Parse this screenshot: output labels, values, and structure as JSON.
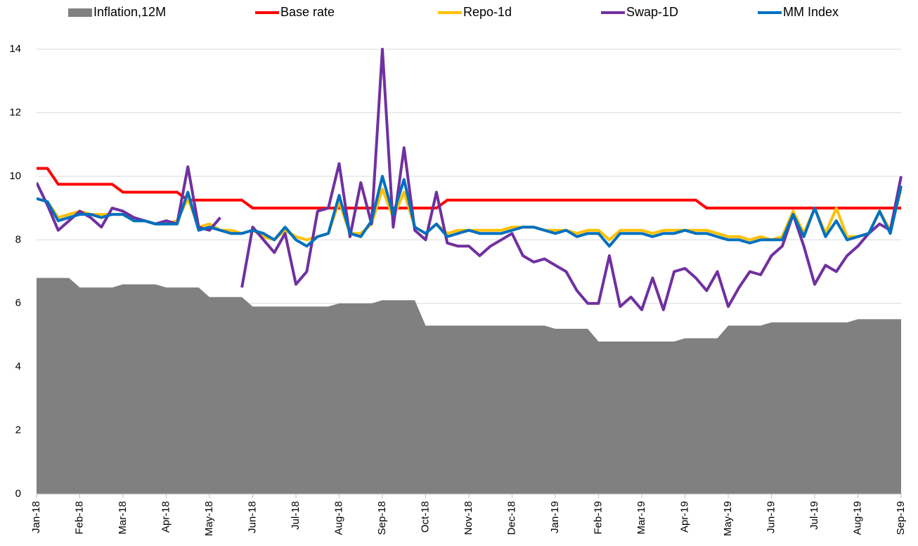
{
  "chart_data": {
    "type": "line",
    "x": [
      0,
      0.25,
      0.5,
      0.75,
      1,
      1.25,
      1.5,
      1.75,
      2,
      2.25,
      2.5,
      2.75,
      3,
      3.25,
      3.5,
      3.75,
      4,
      4.25,
      4.5,
      4.75,
      5,
      5.25,
      5.5,
      5.75,
      6,
      6.25,
      6.5,
      6.75,
      7,
      7.25,
      7.5,
      7.75,
      8,
      8.25,
      8.5,
      8.75,
      9,
      9.25,
      9.5,
      9.75,
      10,
      10.25,
      10.5,
      10.75,
      11,
      11.25,
      11.5,
      11.75,
      12,
      12.25,
      12.5,
      12.75,
      13,
      13.25,
      13.5,
      13.75,
      14,
      14.25,
      14.5,
      14.75,
      15,
      15.25,
      15.5,
      15.75,
      16,
      16.25,
      16.5,
      16.75,
      17,
      17.25,
      17.5,
      17.75,
      18,
      18.25,
      18.5,
      18.75,
      19,
      19.25,
      19.5,
      19.75,
      20
    ],
    "xlim": [
      0,
      20
    ],
    "xticks": [
      {
        "value": 0,
        "label": "Jan-18"
      },
      {
        "value": 1,
        "label": "Feb-18"
      },
      {
        "value": 2,
        "label": "Mar-18"
      },
      {
        "value": 3,
        "label": "Apr-18"
      },
      {
        "value": 4,
        "label": "May-18"
      },
      {
        "value": 5,
        "label": "Jun-18"
      },
      {
        "value": 6,
        "label": "Jul-18"
      },
      {
        "value": 7,
        "label": "Aug-18"
      },
      {
        "value": 8,
        "label": "Sep-18"
      },
      {
        "value": 9,
        "label": "Oct-18"
      },
      {
        "value": 10,
        "label": "Nov-18"
      },
      {
        "value": 11,
        "label": "Dec-18"
      },
      {
        "value": 12,
        "label": "Jan-19"
      },
      {
        "value": 13,
        "label": "Feb-19"
      },
      {
        "value": 14,
        "label": "Mar-19"
      },
      {
        "value": 15,
        "label": "Apr-19"
      },
      {
        "value": 16,
        "label": "May-19"
      },
      {
        "value": 17,
        "label": "Jun-19"
      },
      {
        "value": 18,
        "label": "Jul-19"
      },
      {
        "value": 19,
        "label": "Aug-19"
      },
      {
        "value": 20,
        "label": "Sep-19"
      }
    ],
    "ylim": [
      0,
      14
    ],
    "yticks": [
      0,
      2,
      4,
      6,
      8,
      10,
      12,
      14
    ],
    "grid": true,
    "legend": "top",
    "series": [
      {
        "name": "Inflation,12M",
        "color": "#808080",
        "kind": "area",
        "values": [
          6.8,
          6.8,
          6.8,
          6.8,
          6.5,
          6.5,
          6.5,
          6.5,
          6.6,
          6.6,
          6.6,
          6.6,
          6.5,
          6.5,
          6.5,
          6.5,
          6.2,
          6.2,
          6.2,
          6.2,
          5.9,
          5.9,
          5.9,
          5.9,
          5.9,
          5.9,
          5.9,
          5.9,
          6.0,
          6.0,
          6.0,
          6.0,
          6.1,
          6.1,
          6.1,
          6.1,
          5.3,
          5.3,
          5.3,
          5.3,
          5.3,
          5.3,
          5.3,
          5.3,
          5.3,
          5.3,
          5.3,
          5.3,
          5.2,
          5.2,
          5.2,
          5.2,
          4.8,
          4.8,
          4.8,
          4.8,
          4.8,
          4.8,
          4.8,
          4.8,
          4.9,
          4.9,
          4.9,
          4.9,
          5.3,
          5.3,
          5.3,
          5.3,
          5.4,
          5.4,
          5.4,
          5.4,
          5.4,
          5.4,
          5.4,
          5.4,
          5.5,
          5.5,
          5.5,
          5.5,
          5.5
        ]
      },
      {
        "name": "Base rate",
        "color": "#ff0000",
        "values": [
          10.25,
          10.25,
          9.75,
          9.75,
          9.75,
          9.75,
          9.75,
          9.75,
          9.5,
          9.5,
          9.5,
          9.5,
          9.5,
          9.5,
          9.25,
          9.25,
          9.25,
          9.25,
          9.25,
          9.25,
          9.0,
          9.0,
          9.0,
          9.0,
          9.0,
          9.0,
          9.0,
          9.0,
          9.0,
          9.0,
          9.0,
          9.0,
          9.0,
          9.0,
          9.0,
          9.0,
          9.0,
          9.0,
          9.25,
          9.25,
          9.25,
          9.25,
          9.25,
          9.25,
          9.25,
          9.25,
          9.25,
          9.25,
          9.25,
          9.25,
          9.25,
          9.25,
          9.25,
          9.25,
          9.25,
          9.25,
          9.25,
          9.25,
          9.25,
          9.25,
          9.25,
          9.25,
          9.0,
          9.0,
          9.0,
          9.0,
          9.0,
          9.0,
          9.0,
          9.0,
          9.0,
          9.0,
          9.0,
          9.0,
          9.0,
          9.0,
          9.0,
          9.0,
          9.0,
          9.0,
          9.0
        ]
      },
      {
        "name": "Repo-1d",
        "color": "#ffc000",
        "values": [
          9.3,
          9.2,
          8.7,
          8.8,
          8.9,
          8.8,
          8.8,
          8.8,
          8.8,
          8.6,
          8.6,
          8.5,
          8.5,
          8.6,
          9.3,
          8.4,
          8.5,
          8.3,
          8.3,
          8.2,
          8.3,
          8.1,
          8.0,
          8.3,
          8.1,
          8.0,
          8.1,
          8.2,
          9.2,
          8.2,
          8.2,
          8.5,
          9.6,
          8.7,
          9.5,
          8.4,
          8.2,
          8.5,
          8.2,
          8.3,
          8.3,
          8.3,
          8.3,
          8.3,
          8.4,
          8.4,
          8.4,
          8.3,
          8.3,
          8.3,
          8.2,
          8.3,
          8.3,
          8.0,
          8.3,
          8.3,
          8.3,
          8.2,
          8.3,
          8.3,
          8.3,
          8.3,
          8.3,
          8.2,
          8.1,
          8.1,
          8.0,
          8.1,
          8.0,
          8.1,
          8.9,
          8.2,
          9.0,
          8.2,
          9.0,
          8.1,
          8.1,
          8.2,
          8.9,
          8.3,
          9.6
        ]
      },
      {
        "name": "Swap-1D",
        "color": "#7030a0",
        "values": [
          9.8,
          9.1,
          8.3,
          8.6,
          8.9,
          8.7,
          8.4,
          9.0,
          8.9,
          8.7,
          8.6,
          8.5,
          8.6,
          8.5,
          10.3,
          8.4,
          8.3,
          8.7,
          null,
          6.5,
          8.4,
          8.0,
          7.6,
          8.2,
          6.6,
          7.0,
          8.9,
          9.0,
          10.4,
          8.1,
          9.8,
          8.5,
          14.0,
          8.4,
          10.9,
          8.3,
          8.0,
          9.5,
          7.9,
          7.8,
          7.8,
          7.5,
          7.8,
          8.0,
          8.2,
          7.5,
          7.3,
          7.4,
          7.2,
          7.0,
          6.4,
          6.0,
          6.0,
          7.5,
          5.9,
          6.2,
          5.8,
          6.8,
          5.8,
          7.0,
          7.1,
          6.8,
          6.4,
          7.0,
          5.9,
          6.5,
          7.0,
          6.9,
          7.5,
          7.8,
          8.8,
          7.8,
          6.6,
          7.2,
          7.0,
          7.5,
          7.8,
          8.2,
          8.5,
          8.3,
          10.0
        ]
      },
      {
        "name": "MM Index",
        "color": "#0070c0",
        "values": [
          9.3,
          9.2,
          8.6,
          8.7,
          8.8,
          8.8,
          8.7,
          8.8,
          8.8,
          8.6,
          8.6,
          8.5,
          8.5,
          8.5,
          9.5,
          8.3,
          8.4,
          8.3,
          8.2,
          8.2,
          8.3,
          8.2,
          8.0,
          8.4,
          8.0,
          7.8,
          8.1,
          8.2,
          9.4,
          8.2,
          8.1,
          8.6,
          10.0,
          8.8,
          9.9,
          8.4,
          8.2,
          8.5,
          8.1,
          8.2,
          8.3,
          8.2,
          8.2,
          8.2,
          8.3,
          8.4,
          8.4,
          8.3,
          8.2,
          8.3,
          8.1,
          8.2,
          8.2,
          7.8,
          8.2,
          8.2,
          8.2,
          8.1,
          8.2,
          8.2,
          8.3,
          8.2,
          8.2,
          8.1,
          8.0,
          8.0,
          7.9,
          8.0,
          8.0,
          8.0,
          8.8,
          8.1,
          9.0,
          8.1,
          8.6,
          8.0,
          8.1,
          8.2,
          8.9,
          8.2,
          9.7
        ]
      }
    ]
  }
}
